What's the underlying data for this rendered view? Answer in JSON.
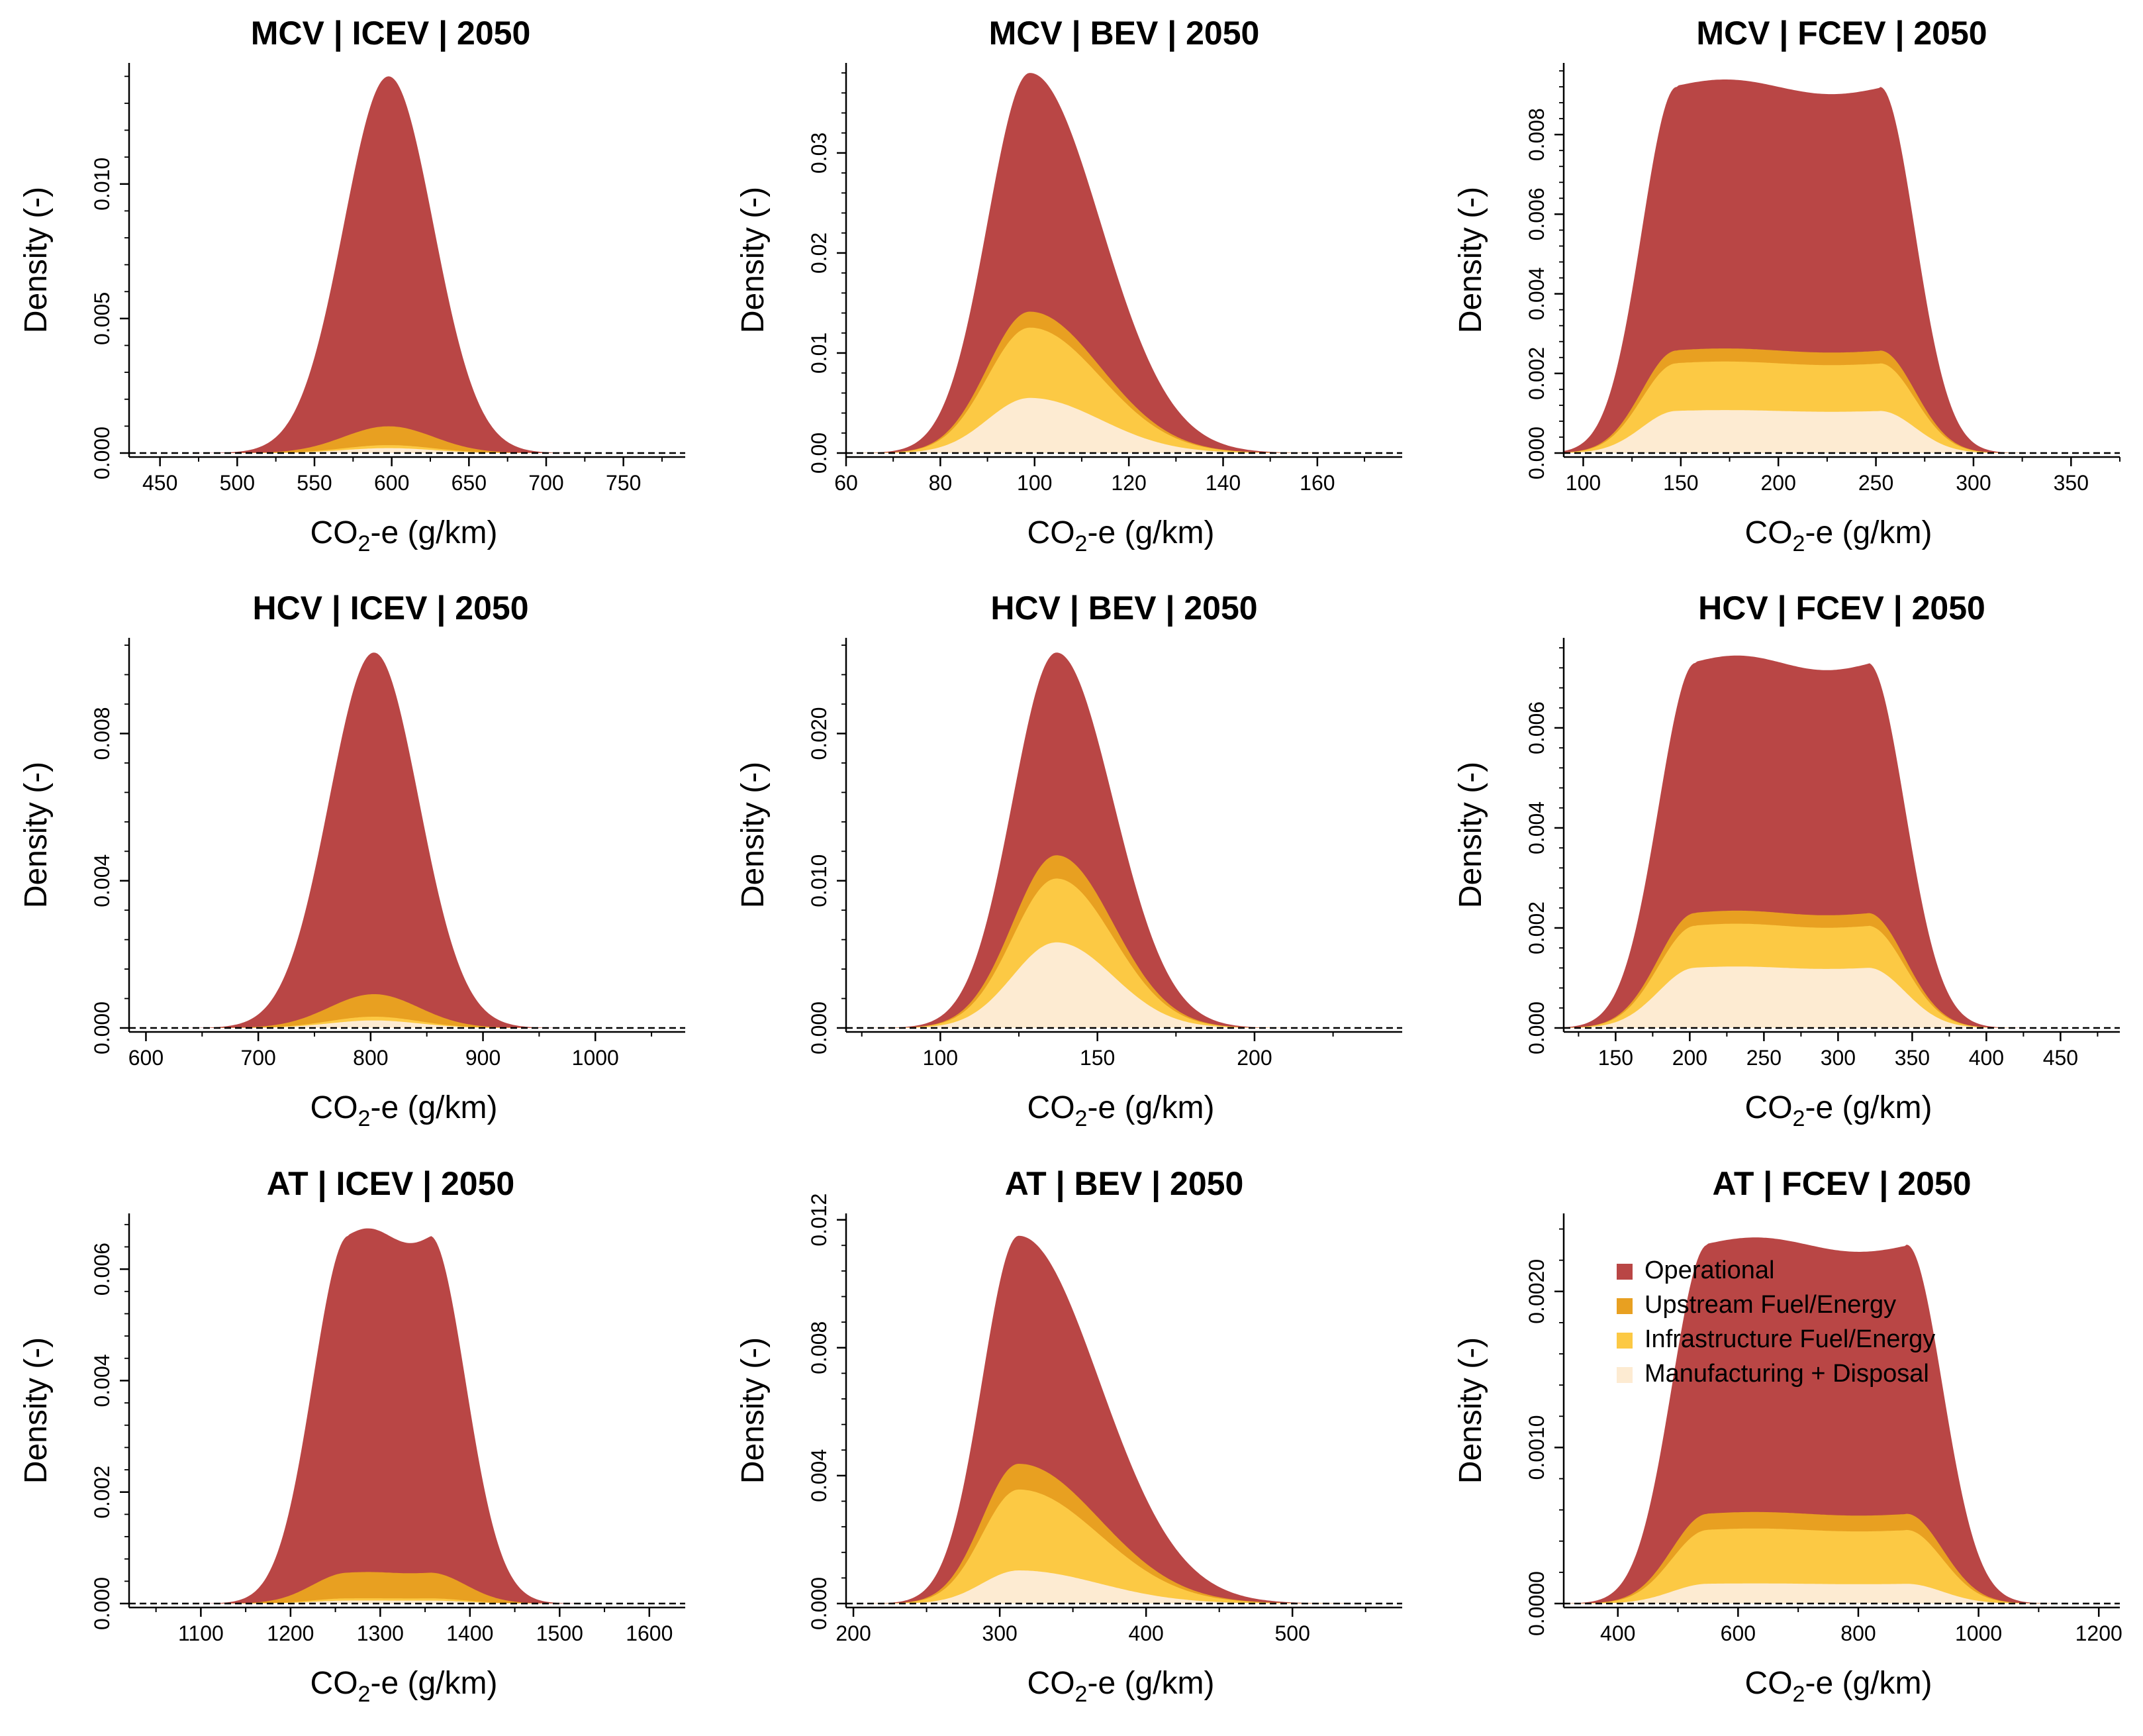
{
  "figure": {
    "xlabel_main": "CO",
    "xlabel_sub": "2",
    "xlabel_rest": "-e (g/km)",
    "ylabel": "Density (-)"
  },
  "legend": {
    "items": [
      {
        "label": "Operational",
        "color": "#B94645"
      },
      {
        "label": "Upstream Fuel/Energy",
        "color": "#E8A021"
      },
      {
        "label": "Infrastructure Fuel/Energy",
        "color": "#FCC944"
      },
      {
        "label": "Manufacturing + Disposal",
        "color": "#FDEBD2"
      }
    ]
  },
  "chart_data": [
    {
      "type": "area",
      "title": "MCV | ICEV | 2050",
      "xlim": [
        430,
        790
      ],
      "xticks": [
        450,
        500,
        550,
        600,
        650,
        700,
        750
      ],
      "ylim": [
        0,
        0.0145
      ],
      "yticks": [
        0,
        0.005,
        0.01
      ],
      "yticklabels": [
        "0.000",
        "0.005",
        "0.010"
      ],
      "shape": "normal",
      "center": 598,
      "spread": 29,
      "peak": 0.014,
      "fractions": [
        0.05,
        0.008,
        0.013
      ],
      "xlabel": "CO2-e (g/km)",
      "ylabel": "Density (-)"
    },
    {
      "type": "area",
      "title": "MCV | BEV | 2050",
      "xlim": [
        60,
        178
      ],
      "xticks": [
        60,
        80,
        100,
        120,
        140,
        160
      ],
      "ylim": [
        0,
        0.039
      ],
      "yticks": [
        0,
        0.01,
        0.02,
        0.03
      ],
      "yticklabels": [
        "0.00",
        "0.01",
        "0.02",
        "0.03"
      ],
      "shape": "skew",
      "center": 99,
      "spread": 9,
      "spread_right": 15,
      "peak": 0.038,
      "fractions": [
        0.042,
        0.185,
        0.145
      ],
      "xlabel": "CO2-e (g/km)",
      "ylabel": "Density (-)"
    },
    {
      "type": "area",
      "title": "MCV | FCEV | 2050",
      "xlim": [
        90,
        375
      ],
      "xticks": [
        100,
        150,
        200,
        250,
        300,
        350
      ],
      "ylim": [
        0,
        0.0098
      ],
      "yticks": [
        0,
        0.002,
        0.004,
        0.006,
        0.008
      ],
      "yticklabels": [
        "0.000",
        "0.002",
        "0.004",
        "0.006",
        "0.008"
      ],
      "shape": "plateau",
      "center": 200,
      "halfwidth": 52,
      "edge": 18,
      "peak": 0.0092,
      "fractions": [
        0.035,
        0.13,
        0.115
      ],
      "xlabel": "CO2-e (g/km)",
      "ylabel": "Density (-)"
    },
    {
      "type": "area",
      "title": "HCV | ICEV | 2050",
      "xlim": [
        585,
        1080
      ],
      "xticks": [
        600,
        700,
        800,
        900,
        1000
      ],
      "ylim": [
        0,
        0.0106
      ],
      "yticks": [
        0,
        0.004,
        0.008
      ],
      "yticklabels": [
        "0.000",
        "0.004",
        "0.008"
      ],
      "shape": "normal",
      "center": 803,
      "spread": 40,
      "peak": 0.0102,
      "fractions": [
        0.06,
        0.01,
        0.02
      ],
      "xlabel": "CO2-e (g/km)",
      "ylabel": "Density (-)"
    },
    {
      "type": "area",
      "title": "HCV | BEV | 2050",
      "xlim": [
        70,
        247
      ],
      "xticks": [
        100,
        150,
        200
      ],
      "ylim": [
        0,
        0.0265
      ],
      "yticks": [
        0,
        0.01,
        0.02
      ],
      "yticklabels": [
        "0.000",
        "0.010",
        "0.020"
      ],
      "shape": "skew",
      "center": 137,
      "spread": 14,
      "spread_right": 18,
      "peak": 0.0255,
      "fractions": [
        0.062,
        0.17,
        0.228
      ],
      "xlabel": "CO2-e (g/km)",
      "ylabel": "Density (-)"
    },
    {
      "type": "area",
      "title": "HCV | FCEV | 2050",
      "xlim": [
        115,
        490
      ],
      "xticks": [
        150,
        200,
        250,
        300,
        350,
        400,
        450
      ],
      "ylim": [
        0,
        0.0078
      ],
      "yticks": [
        0,
        0.002,
        0.004,
        0.006
      ],
      "yticklabels": [
        "0.000",
        "0.002",
        "0.004",
        "0.006"
      ],
      "shape": "plateau",
      "center": 262,
      "halfwidth": 58,
      "edge": 25,
      "peak": 0.0073,
      "fractions": [
        0.035,
        0.115,
        0.165
      ],
      "xlabel": "CO2-e (g/km)",
      "ylabel": "Density (-)"
    },
    {
      "type": "area",
      "title": "AT | ICEV | 2050",
      "xlim": [
        1020,
        1640
      ],
      "xticks": [
        1100,
        1200,
        1300,
        1400,
        1500,
        1600
      ],
      "ylim": [
        0,
        0.007
      ],
      "yticks": [
        0,
        0.002,
        0.004,
        0.006
      ],
      "yticklabels": [
        "0.000",
        "0.002",
        "0.004",
        "0.006"
      ],
      "shape": "plateau",
      "center": 1310,
      "halfwidth": 45,
      "edge": 40,
      "peak": 0.0066,
      "fractions": [
        0.07,
        0.006,
        0.008
      ],
      "xlabel": "CO2-e (g/km)",
      "ylabel": "Density (-)"
    },
    {
      "type": "area",
      "title": "AT | BEV | 2050",
      "xlim": [
        195,
        575
      ],
      "xticks": [
        200,
        300,
        400,
        500
      ],
      "ylim": [
        0,
        0.0122
      ],
      "yticks": [
        0,
        0.004,
        0.008,
        0.012
      ],
      "yticklabels": [
        "0.000",
        "0.004",
        "0.008",
        "0.012"
      ],
      "shape": "skew",
      "center": 313,
      "spread": 25,
      "spread_right": 55,
      "peak": 0.0115,
      "fractions": [
        0.07,
        0.22,
        0.09
      ],
      "xlabel": "CO2-e (g/km)",
      "ylabel": "Density (-)"
    },
    {
      "type": "area",
      "title": "AT | FCEV | 2050",
      "xlim": [
        310,
        1235
      ],
      "xticks": [
        400,
        600,
        800,
        1000,
        1200
      ],
      "ylim": [
        0,
        0.0025
      ],
      "yticks": [
        0,
        0.001,
        0.002
      ],
      "yticklabels": [
        "0.0000",
        "0.0010",
        "0.0020"
      ],
      "shape": "plateau",
      "center": 715,
      "halfwidth": 165,
      "edge": 60,
      "peak": 0.0023,
      "fractions": [
        0.045,
        0.15,
        0.055
      ],
      "legend_position": "top-left",
      "xlabel": "CO2-e (g/km)",
      "ylabel": "Density (-)"
    }
  ]
}
